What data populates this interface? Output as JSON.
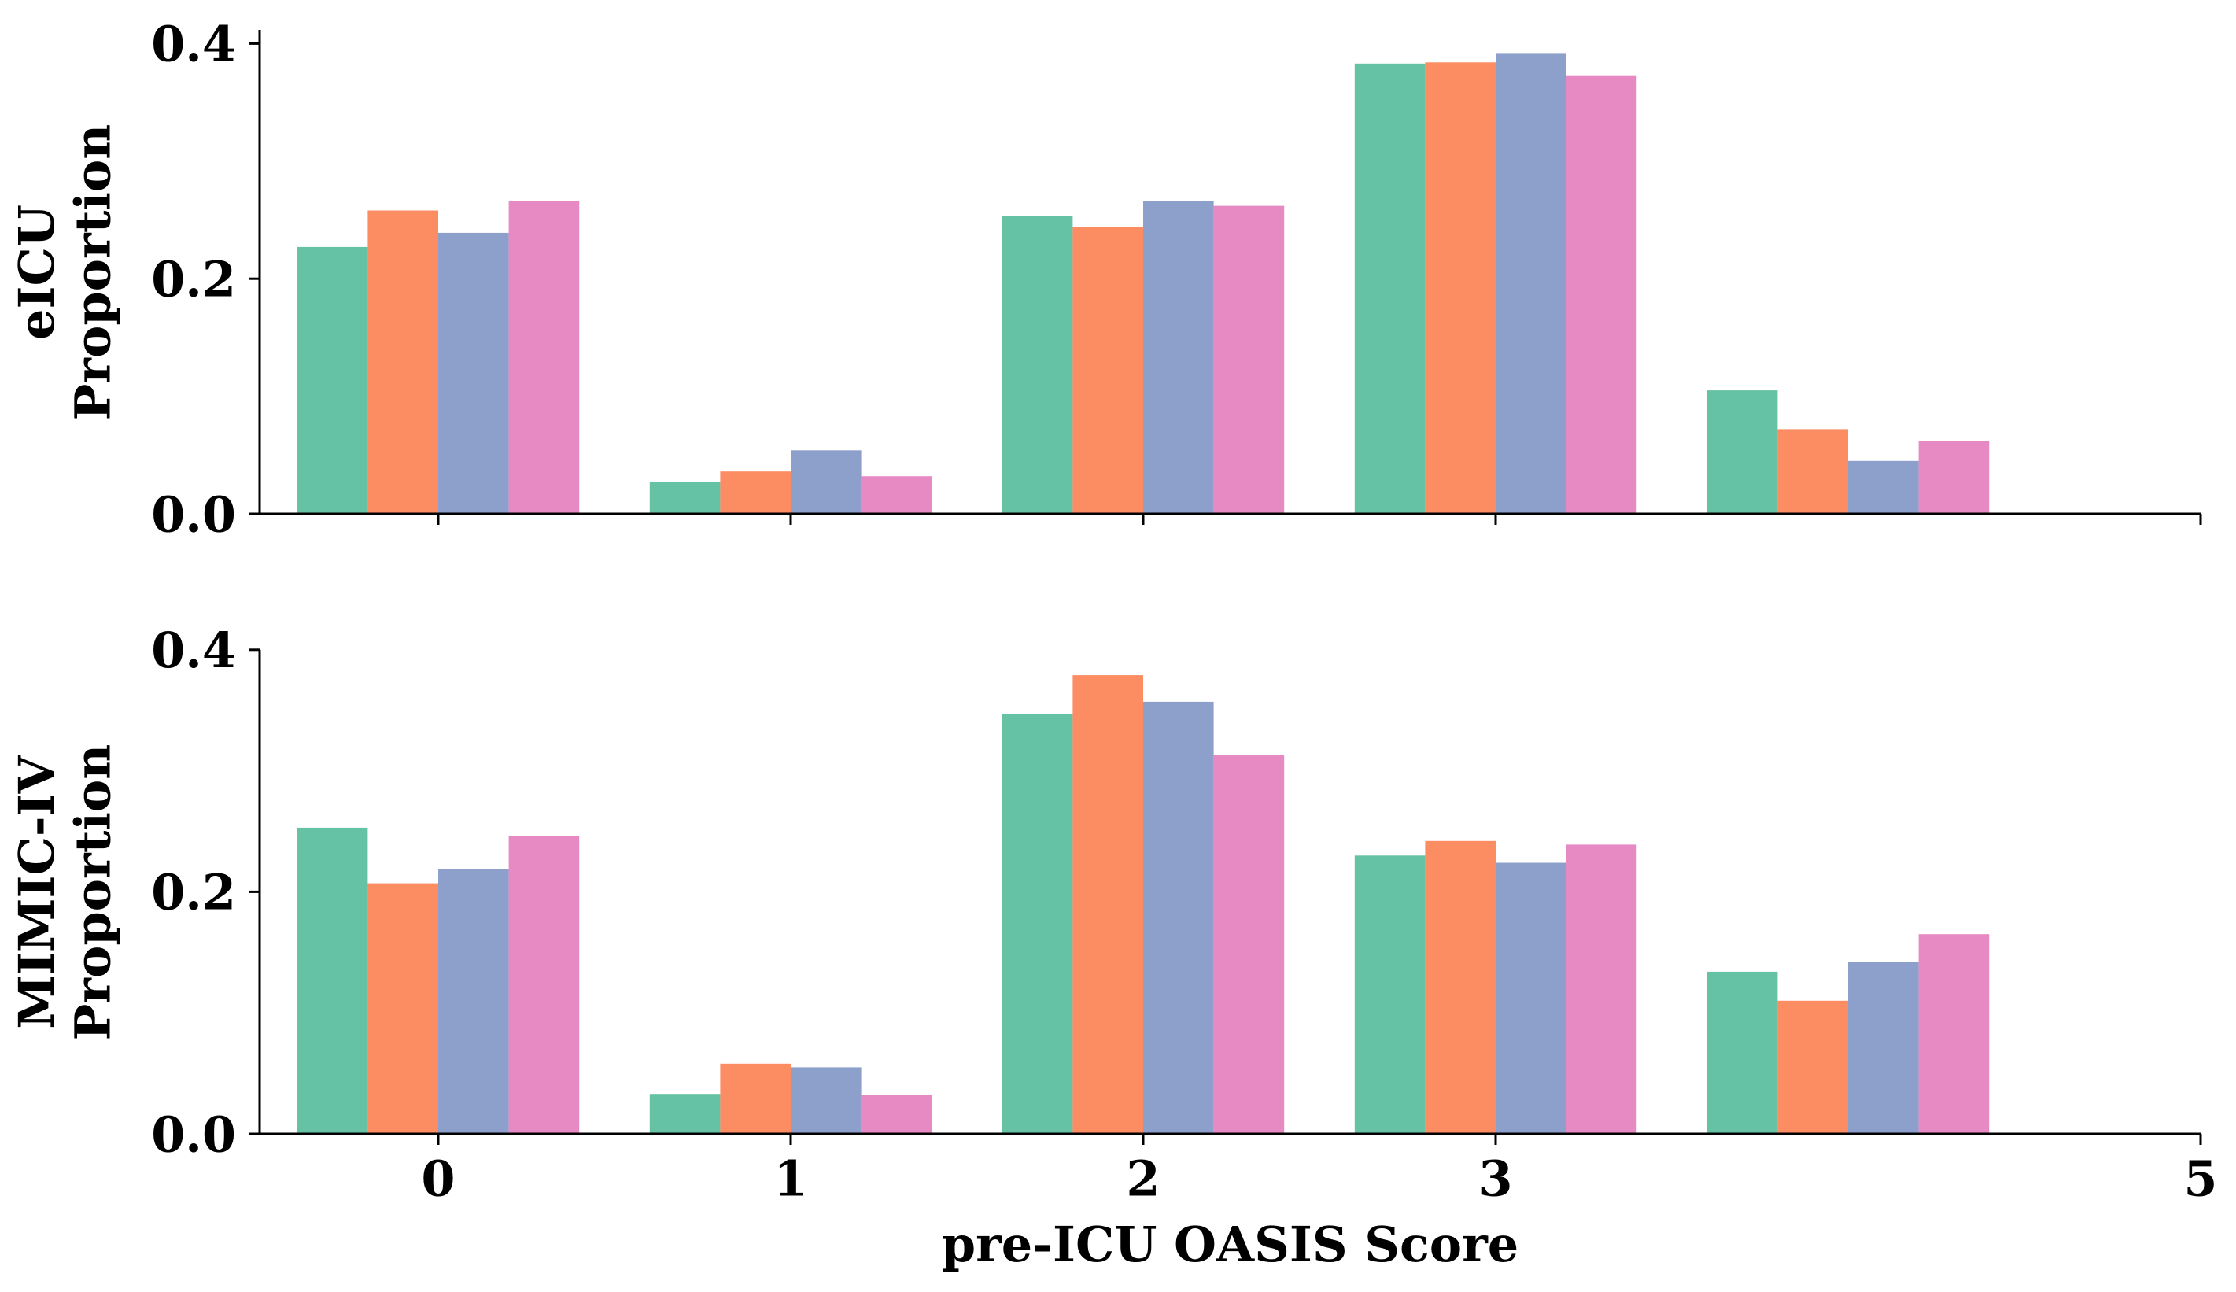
{
  "chart_data": [
    {
      "type": "bar",
      "ylabel": "eICU\nProportion",
      "xlabel": "",
      "ylim": [
        0,
        0.41
      ],
      "yticks": [
        "0.0",
        "0.2",
        "0.4"
      ],
      "ytick_values": [
        0,
        0.2,
        0.4
      ],
      "xticks": [
        "0",
        "1",
        "2",
        "3",
        "5"
      ],
      "xtick_values": [
        0,
        1,
        2,
        3,
        5
      ],
      "show_xtick_labels": false,
      "grid": false,
      "group_centers": [
        0,
        1,
        2,
        3,
        4
      ],
      "series": [
        {
          "color": "#66c2a5",
          "values": [
            0.227,
            0.027,
            0.253,
            0.383,
            0.105
          ]
        },
        {
          "color": "#fc8d62",
          "values": [
            0.258,
            0.036,
            0.244,
            0.384,
            0.072
          ]
        },
        {
          "color": "#8da0cb",
          "values": [
            0.239,
            0.054,
            0.266,
            0.392,
            0.045
          ]
        },
        {
          "color": "#e78ac3",
          "values": [
            0.266,
            0.032,
            0.262,
            0.373,
            0.062
          ]
        }
      ]
    },
    {
      "type": "bar",
      "ylabel": "MIMIC-IV\nProportion",
      "xlabel": "pre-ICU OASIS Score",
      "ylim": [
        0,
        0.4
      ],
      "yticks": [
        "0.0",
        "0.2",
        "0.4"
      ],
      "ytick_values": [
        0,
        0.2,
        0.4
      ],
      "xticks": [
        "0",
        "1",
        "2",
        "3",
        "5"
      ],
      "xtick_values": [
        0,
        1,
        2,
        3,
        5
      ],
      "show_xtick_labels": true,
      "grid": false,
      "group_centers": [
        0,
        1,
        2,
        3,
        4
      ],
      "series": [
        {
          "color": "#66c2a5",
          "values": [
            0.253,
            0.033,
            0.347,
            0.23,
            0.134
          ]
        },
        {
          "color": "#fc8d62",
          "values": [
            0.207,
            0.058,
            0.379,
            0.242,
            0.11
          ]
        },
        {
          "color": "#8da0cb",
          "values": [
            0.219,
            0.055,
            0.357,
            0.224,
            0.142
          ]
        },
        {
          "color": "#e78ac3",
          "values": [
            0.246,
            0.032,
            0.313,
            0.239,
            0.165
          ]
        }
      ]
    }
  ]
}
